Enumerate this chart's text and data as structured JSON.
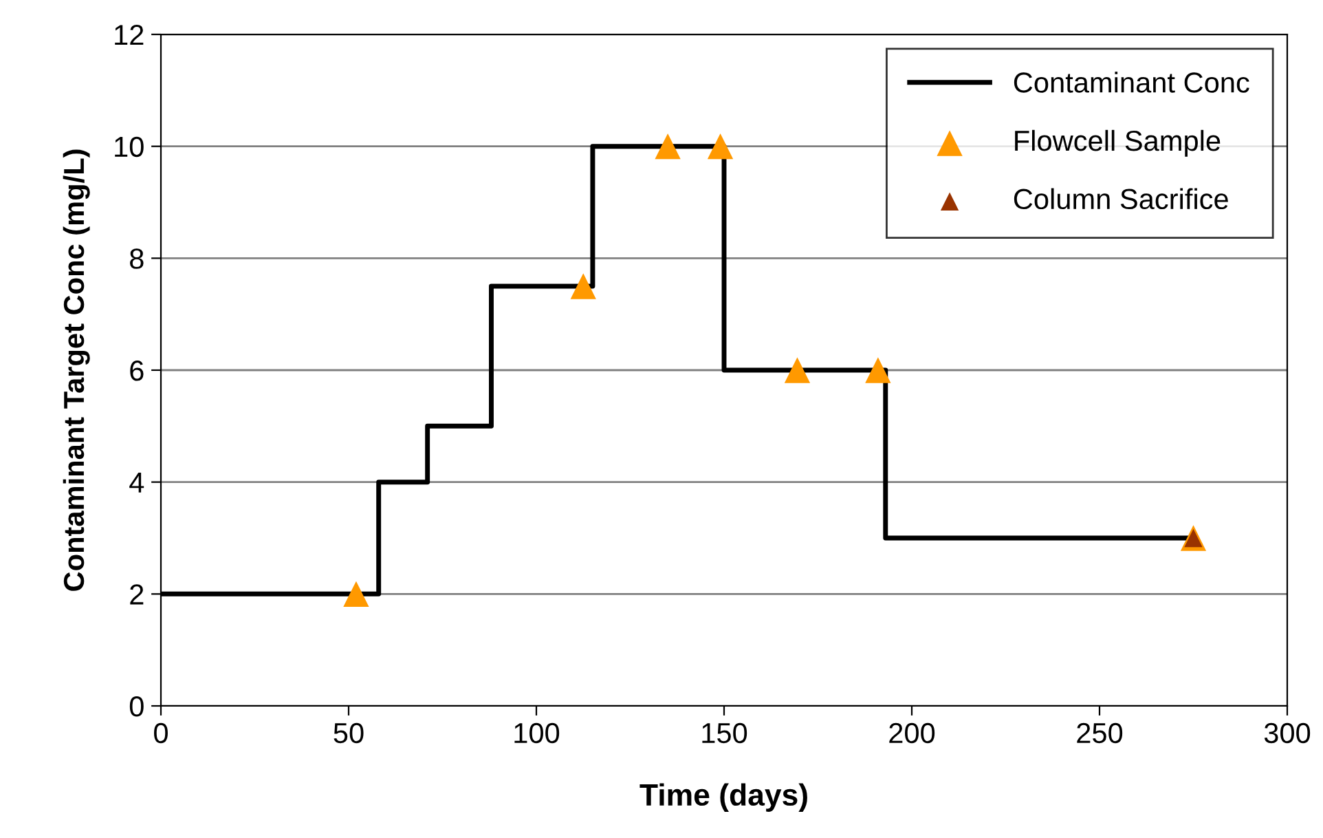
{
  "chart_data": {
    "type": "step",
    "xlabel": "Time (days)",
    "ylabel": "Contaminant Target Conc (mg/L)",
    "xlim": [
      0,
      300
    ],
    "xticks": [
      0,
      50,
      100,
      150,
      200,
      250,
      300
    ],
    "ylim": [
      0,
      12
    ],
    "yticks": [
      0,
      2,
      4,
      6,
      8,
      10,
      12
    ],
    "grid": "y",
    "legend": "top right",
    "series": [
      {
        "name": "Contaminant Conc",
        "color": "#000000",
        "marker": "none",
        "x": [
          0,
          58,
          71,
          88,
          115,
          150,
          193,
          275
        ],
        "values": [
          2,
          4,
          5,
          7.5,
          10,
          6,
          3,
          3
        ]
      },
      {
        "name": "Flowcell Sample",
        "type": "scatter",
        "color": "#ff9900",
        "marker": "triangle",
        "x": [
          52,
          112.5,
          135,
          149,
          169.5,
          191,
          275
        ],
        "values": [
          2,
          7.5,
          10,
          10,
          6,
          6,
          3
        ]
      },
      {
        "name": "Column Sacrifice",
        "type": "scatter",
        "color": "#993300",
        "marker": "triangle",
        "x": [
          275
        ],
        "values": [
          3
        ]
      }
    ]
  }
}
